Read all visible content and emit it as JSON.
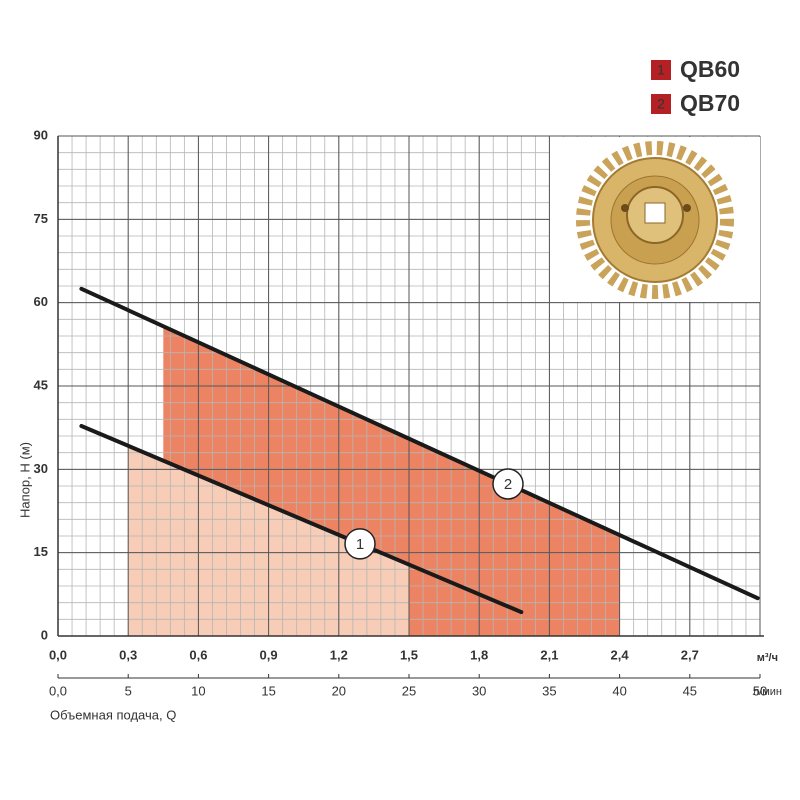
{
  "chart_data": {
    "type": "line",
    "ylabel": "Напор, Н (м)",
    "xlabel": "Объемная подача, Q",
    "xunit": "м³/ч",
    "x2unit": "л/мин",
    "xlim": [
      0,
      3
    ],
    "xticks": [
      {
        "value": 0,
        "label": "0,0"
      },
      {
        "value": 0.3,
        "label": "0,3"
      },
      {
        "value": 0.6,
        "label": "0,6"
      },
      {
        "value": 0.9,
        "label": "0,9"
      },
      {
        "value": 1.2,
        "label": "1,2"
      },
      {
        "value": 1.5,
        "label": "1,5"
      },
      {
        "value": 1.8,
        "label": "1,8"
      },
      {
        "value": 2.1,
        "label": "2,1"
      },
      {
        "value": 2.4,
        "label": "2,4"
      },
      {
        "value": 2.7,
        "label": "2,7"
      }
    ],
    "x2lim": [
      0,
      50
    ],
    "x2ticks": [
      {
        "value": 0,
        "label": "0,0"
      },
      5,
      10,
      15,
      20,
      25,
      30,
      35,
      40,
      45,
      50
    ],
    "ylim": [
      0,
      90
    ],
    "yticks": [
      0,
      15,
      30,
      45,
      60,
      75,
      90
    ],
    "grid": true,
    "series": [
      {
        "name": "QB60",
        "marker": "1",
        "color": "#1a1a1a",
        "legend_color": "#b52025",
        "fill_color": "#f7cdb7",
        "x": [
          0.1,
          1.98
        ],
        "values": [
          37.8,
          4.3
        ],
        "operating_range": [
          0.3,
          1.5
        ]
      },
      {
        "name": "QB70",
        "marker": "2",
        "color": "#1a1a1a",
        "legend_color": "#b52025",
        "fill_color": "#ec8463",
        "x": [
          0.1,
          2.99
        ],
        "values": [
          62.5,
          6.8
        ],
        "operating_range": [
          0.45,
          2.4
        ]
      }
    ]
  }
}
